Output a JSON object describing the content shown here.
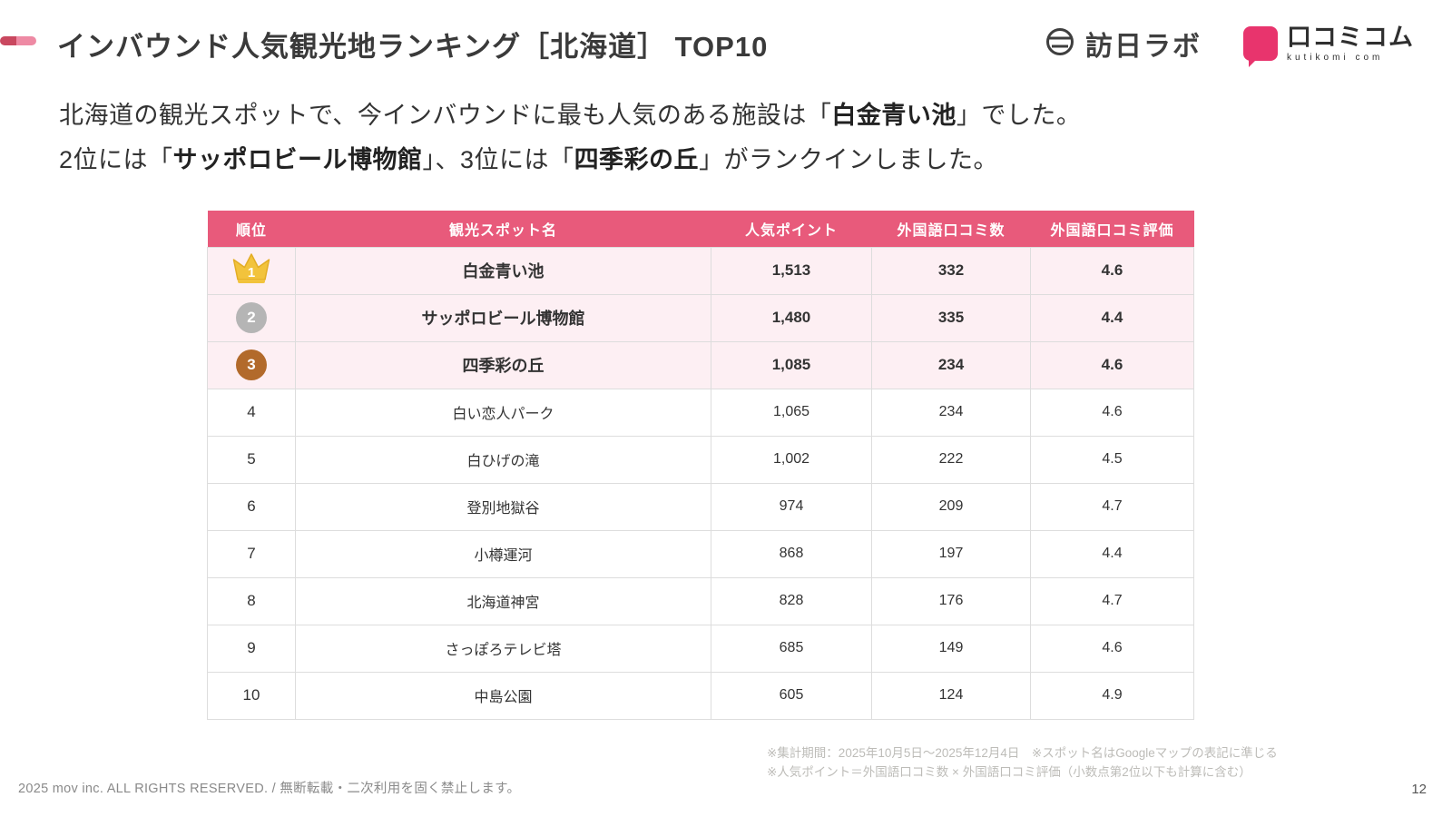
{
  "header": {
    "title": "インバウンド人気観光地ランキング［北海道］ TOP10",
    "honichi_logo_text": "訪日ラボ",
    "kutikomi_logo_text": "口コミコム",
    "kutikomi_logo_sub": "kutikomi com"
  },
  "intro": {
    "l1a": "北海道の観光スポットで、今インバウンドに最も人気のある施設は「",
    "l1b": "白金青い池",
    "l1c": "」でした。",
    "l2a": "2位には「",
    "l2b": "サッポロビール博物館",
    "l2c": "」、3位には「",
    "l2d": "四季彩の丘",
    "l2e": "」がランクインしました。"
  },
  "table": {
    "columns": [
      "順位",
      "観光スポット名",
      "人気ポイント",
      "外国語口コミ数",
      "外国語口コミ評価"
    ],
    "rows": [
      {
        "rank": "1",
        "name": "白金青い池",
        "points": "1,513",
        "reviews": "332",
        "rating": "4.6"
      },
      {
        "rank": "2",
        "name": "サッポロビール博物館",
        "points": "1,480",
        "reviews": "335",
        "rating": "4.4"
      },
      {
        "rank": "3",
        "name": "四季彩の丘",
        "points": "1,085",
        "reviews": "234",
        "rating": "4.6"
      },
      {
        "rank": "4",
        "name": "白い恋人パーク",
        "points": "1,065",
        "reviews": "234",
        "rating": "4.6"
      },
      {
        "rank": "5",
        "name": "白ひげの滝",
        "points": "1,002",
        "reviews": "222",
        "rating": "4.5"
      },
      {
        "rank": "6",
        "name": "登別地獄谷",
        "points": "974",
        "reviews": "209",
        "rating": "4.7"
      },
      {
        "rank": "7",
        "name": "小樽運河",
        "points": "868",
        "reviews": "197",
        "rating": "4.4"
      },
      {
        "rank": "8",
        "name": "北海道神宮",
        "points": "828",
        "reviews": "176",
        "rating": "4.7"
      },
      {
        "rank": "9",
        "name": "さっぽろテレビ塔",
        "points": "685",
        "reviews": "149",
        "rating": "4.6"
      },
      {
        "rank": "10",
        "name": "中島公園",
        "points": "605",
        "reviews": "124",
        "rating": "4.9"
      }
    ]
  },
  "notes": {
    "line1": "※集計期間：2025年10月5日〜2025年12月4日　※スポット名はGoogleマップの表記に準じる",
    "line2": "※人気ポイント＝外国語口コミ数 × 外国語口コミ評価（小数点第2位以下も計算に含む）"
  },
  "footer": {
    "copyright": "2025 mov inc. ALL RIGHTS RESERVED. / 無断転載・二次利用を固く禁止します。",
    "page": "12"
  },
  "colors": {
    "accent_pink": "#e85a7b",
    "row_highlight": "#fdeff3",
    "crown_gold": "#f2c33c",
    "badge_silver": "#b5b5b5",
    "badge_bronze": "#b26a2b",
    "brand_pink": "#e8346d"
  }
}
